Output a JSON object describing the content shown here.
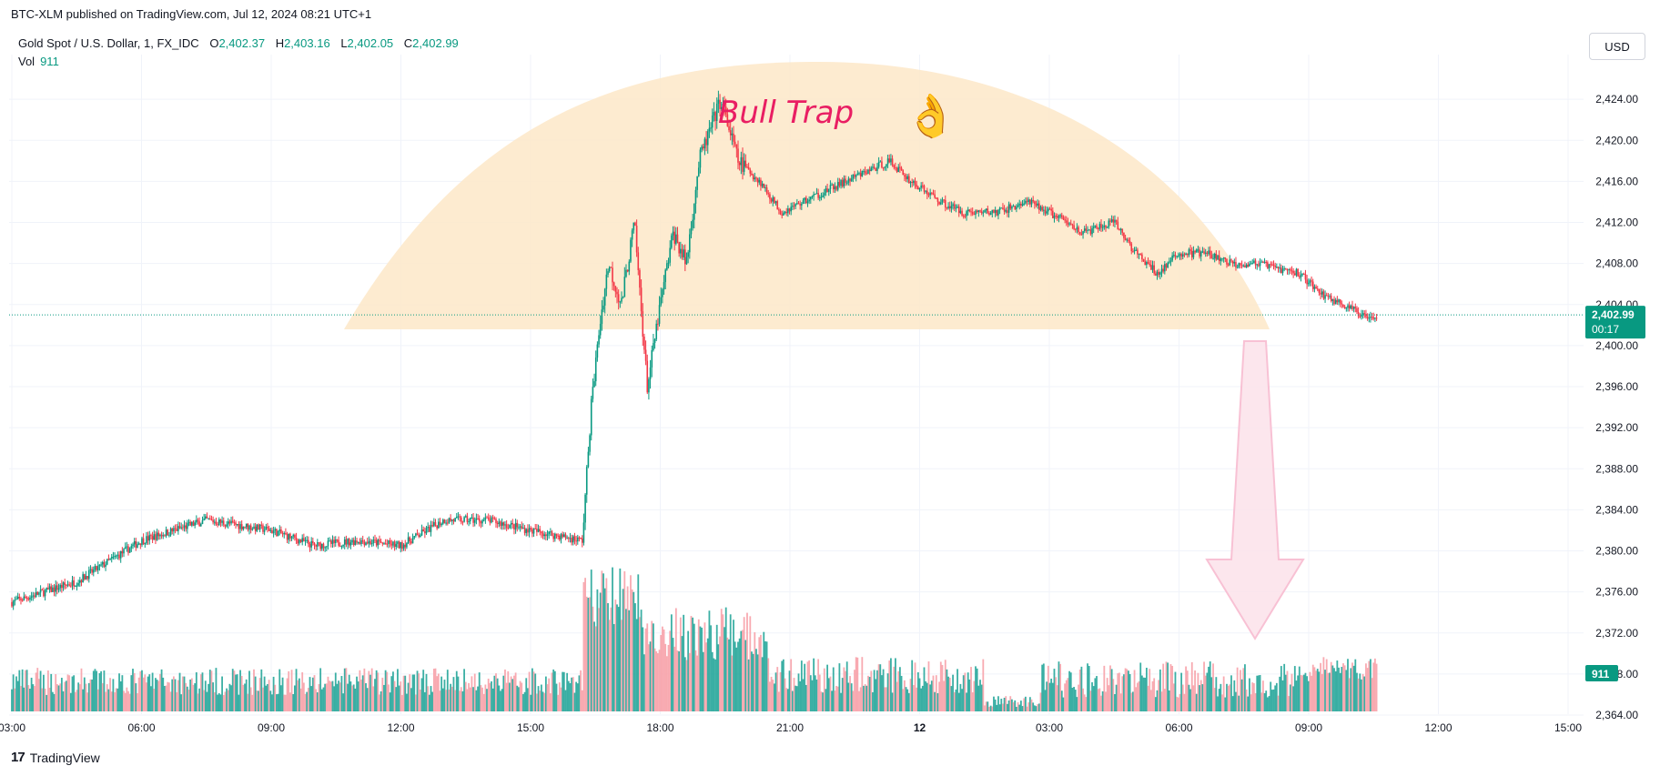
{
  "publisher_line": "BTC-XLM published on TradingView.com, Jul 12, 2024 08:21 UTC+1",
  "legend": {
    "symbol": "Gold Spot / U.S. Dollar, 1, FX_IDC",
    "open_label": "O",
    "open": "2,402.37",
    "high_label": "H",
    "high": "2,403.16",
    "low_label": "L",
    "low": "2,402.05",
    "close_label": "C",
    "close": "2,402.99",
    "vol_label": "Vol",
    "vol": "911"
  },
  "currency_button": "USD",
  "footer_brand": "TradingView",
  "footer_logo": "17",
  "annotation": {
    "text": "Bull Trap",
    "emoji": "👌"
  },
  "colors": {
    "up": "#089981",
    "down": "#f23645",
    "annotation_fill": "#fde8c8",
    "arrow_fill": "#fce4ec",
    "arrow_stroke": "#f8bbd0",
    "label_bg": "#089981"
  },
  "chart_data": {
    "type": "candlestick",
    "x_ticks": [
      "03:00",
      "06:00",
      "09:00",
      "12:00",
      "15:00",
      "18:00",
      "21:00",
      "12",
      "03:00",
      "06:00",
      "09:00",
      "12:00",
      "15:00"
    ],
    "y_ticks": [
      "2,424.00",
      "2,420.00",
      "2,416.00",
      "2,412.00",
      "2,408.00",
      "2,404.00",
      "2,400.00",
      "2,396.00",
      "2,392.00",
      "2,388.00",
      "2,384.00",
      "2,380.00",
      "2,376.00",
      "2,372.00",
      "2,368.00",
      "2,364.00"
    ],
    "ylim": [
      2364,
      2428
    ],
    "price_path": [
      [
        0,
        2375
      ],
      [
        1.5,
        2377
      ],
      [
        3,
        2381
      ],
      [
        4.5,
        2383
      ],
      [
        6,
        2382
      ],
      [
        7,
        2380.5
      ],
      [
        8,
        2381
      ],
      [
        9,
        2380.5
      ],
      [
        10,
        2383
      ],
      [
        11,
        2383
      ],
      [
        12,
        2382
      ],
      [
        13.2,
        2381
      ],
      [
        13.4,
        2394
      ],
      [
        13.6,
        2402
      ],
      [
        13.8,
        2408
      ],
      [
        14.1,
        2404
      ],
      [
        14.4,
        2412
      ],
      [
        14.7,
        2396
      ],
      [
        15.0,
        2404
      ],
      [
        15.3,
        2411
      ],
      [
        15.6,
        2408
      ],
      [
        15.9,
        2418
      ],
      [
        16.4,
        2424
      ],
      [
        16.8,
        2418
      ],
      [
        17.3,
        2416
      ],
      [
        17.8,
        2413
      ],
      [
        18.3,
        2414
      ],
      [
        18.8,
        2415
      ],
      [
        19.3,
        2416
      ],
      [
        19.8,
        2417
      ],
      [
        20.3,
        2418
      ],
      [
        20.8,
        2416
      ],
      [
        21.5,
        2414
      ],
      [
        22.0,
        2413
      ],
      [
        22.8,
        2413
      ],
      [
        23.5,
        2414
      ],
      [
        24.0,
        2413
      ],
      [
        24.8,
        2411
      ],
      [
        25.5,
        2412
      ],
      [
        26.0,
        2409
      ],
      [
        26.5,
        2407
      ],
      [
        27.0,
        2409
      ],
      [
        27.6,
        2409
      ],
      [
        28.2,
        2408
      ],
      [
        28.8,
        2408
      ],
      [
        29.3,
        2407.5
      ],
      [
        29.8,
        2407
      ],
      [
        30.3,
        2405
      ],
      [
        30.8,
        2404
      ],
      [
        31.2,
        2403
      ],
      [
        31.6,
        2402.99
      ]
    ],
    "current_price_label": "2,402.99",
    "countdown_label": "00:17",
    "current_volume_label": "911"
  }
}
